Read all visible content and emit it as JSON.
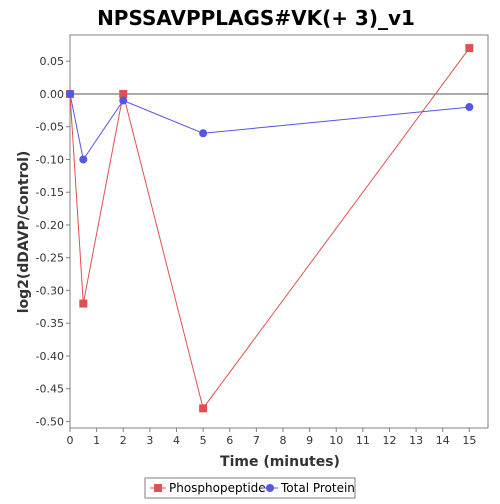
{
  "chart_data": {
    "type": "line",
    "title": "NPSSAVPPLAGS#VK(+ 3)_v1",
    "xlabel": "Time (minutes)",
    "ylabel": "log2(dDAVP/Control)",
    "xlim": [
      0,
      15.7
    ],
    "ylim": [
      -0.51,
      0.09
    ],
    "x_ticks": [
      0,
      1,
      2,
      3,
      4,
      5,
      6,
      7,
      8,
      9,
      10,
      11,
      12,
      13,
      14,
      15
    ],
    "y_ticks": [
      0.05,
      0.0,
      -0.05,
      -0.1,
      -0.15,
      -0.2,
      -0.25,
      -0.3,
      -0.35,
      -0.4,
      -0.45,
      -0.5
    ],
    "y_tick_labels": [
      "0.05",
      "0.00",
      "-0.05",
      "-0.10",
      "-0.15",
      "-0.20",
      "-0.25",
      "-0.30",
      "-0.35",
      "-0.40",
      "-0.45",
      "-0.50"
    ],
    "x_tick_labels": [
      "0",
      "1",
      "2",
      "3",
      "4",
      "5",
      "6",
      "7",
      "8",
      "9",
      "10",
      "11",
      "12",
      "13",
      "14",
      "15"
    ],
    "zero_line": true,
    "grid": false,
    "legend_position": "bottom",
    "series": [
      {
        "name": "Phosphopeptide",
        "marker": "square",
        "color": "#e05050",
        "x": [
          0,
          0.5,
          2,
          5,
          15
        ],
        "y": [
          0.0,
          -0.32,
          0.0,
          -0.48,
          0.07
        ]
      },
      {
        "name": "Total Protein",
        "marker": "circle",
        "color": "#5555e6",
        "x": [
          0,
          0.5,
          2,
          5,
          15
        ],
        "y": [
          0.0,
          -0.1,
          -0.01,
          -0.06,
          -0.02
        ]
      }
    ]
  }
}
